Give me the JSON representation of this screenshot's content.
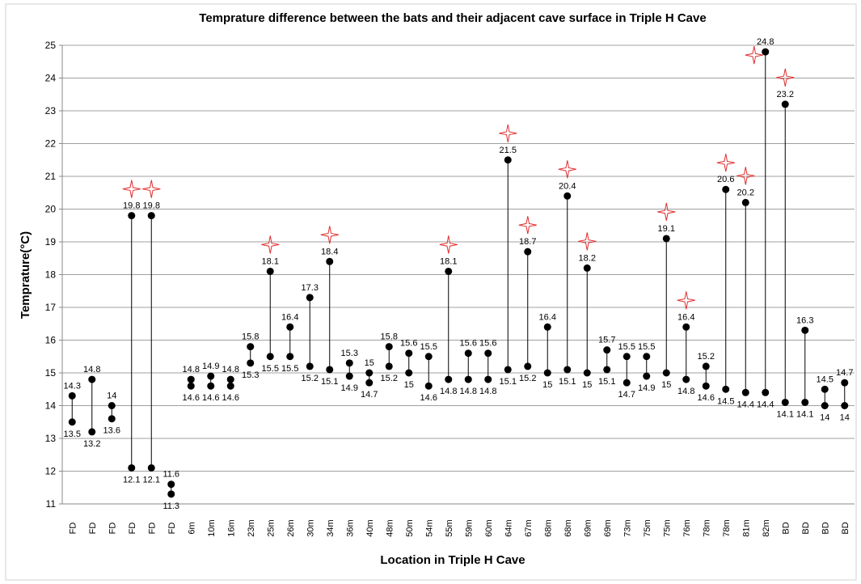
{
  "chart_data": {
    "type": "dumbbell",
    "title": "Temprature difference between the bats and their adjacent cave surface in Triple H Cave",
    "x_label": "Location in Triple H Cave",
    "y_label": "Temprature(°C)",
    "categories": [
      "FD",
      "FD",
      "FD",
      "FD",
      "FD",
      "FD",
      "6m",
      "10m",
      "16m",
      "23m",
      "25m",
      "26m",
      "30m",
      "34m",
      "36m",
      "40m",
      "48m",
      "50m",
      "54m",
      "55m",
      "59m",
      "60m",
      "64m",
      "67m",
      "68m",
      "68m",
      "69m",
      "69m",
      "73m",
      "75m",
      "75m",
      "76m",
      "78m",
      "78m",
      "81m",
      "82m",
      "BD",
      "BD",
      "BD",
      "BD"
    ],
    "series": [
      {
        "color": "#000000",
        "values": [
          14.3,
          14.8,
          14,
          19.8,
          19.8,
          11.6,
          14.8,
          14.9,
          14.8,
          15.8,
          18.1,
          16.4,
          17.3,
          18.4,
          15.3,
          15,
          15.8,
          15.6,
          15.5,
          18.1,
          15.6,
          15.6,
          21.5,
          18.7,
          16.4,
          20.4,
          18.2,
          15.7,
          15.5,
          15.5,
          19.1,
          16.4,
          15.2,
          20.6,
          20.2,
          24.8,
          23.2,
          16.3,
          14.5,
          14.7
        ]
      },
      {
        "color": "#000000",
        "values": [
          13.5,
          13.2,
          13.6,
          12.1,
          12.1,
          11.3,
          14.6,
          14.6,
          14.6,
          15.3,
          15.5,
          15.5,
          15.2,
          15.1,
          14.9,
          14.7,
          15.2,
          15,
          14.6,
          14.8,
          14.8,
          14.8,
          15.1,
          15.2,
          15,
          15.1,
          15,
          15.1,
          14.7,
          14.9,
          15,
          14.8,
          14.6,
          14.5,
          14.4,
          14.4,
          14.1,
          14.1,
          14,
          14
        ]
      }
    ],
    "highlighted": [
      false,
      false,
      false,
      true,
      true,
      false,
      false,
      false,
      false,
      false,
      true,
      false,
      false,
      true,
      false,
      false,
      false,
      false,
      false,
      true,
      false,
      false,
      true,
      true,
      false,
      true,
      true,
      false,
      false,
      false,
      true,
      true,
      false,
      true,
      true,
      true,
      true,
      false,
      false,
      false
    ],
    "highlight_color": "#e03030",
    "ylim": [
      11,
      25
    ],
    "yticks": [
      11,
      12,
      13,
      14,
      15,
      16,
      17,
      18,
      19,
      20,
      21,
      22,
      23,
      24,
      25
    ],
    "grid": true
  }
}
